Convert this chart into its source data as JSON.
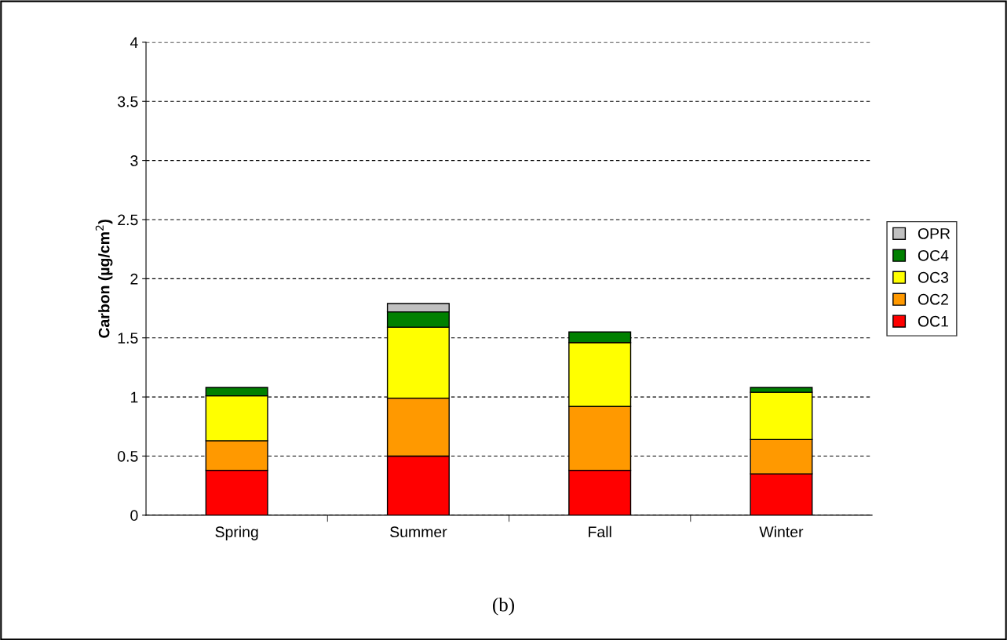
{
  "chart_data": {
    "type": "bar",
    "stacked": true,
    "ylabel": "Carbon (µg/cm$^{2}$)",
    "categories": [
      "Spring",
      "Summer",
      "Fall",
      "Winter"
    ],
    "series": [
      {
        "name": "OC1",
        "color": "#ff0000",
        "values": [
          0.38,
          0.5,
          0.38,
          0.35
        ]
      },
      {
        "name": "OC2",
        "color": "#ff9900",
        "values": [
          0.25,
          0.49,
          0.54,
          0.29
        ]
      },
      {
        "name": "OC3",
        "color": "#ffff00",
        "values": [
          0.38,
          0.6,
          0.54,
          0.4
        ]
      },
      {
        "name": "OC4",
        "color": "#008000",
        "values": [
          0.07,
          0.13,
          0.09,
          0.04
        ]
      },
      {
        "name": "OPR",
        "color": "#c0c0c0",
        "values": [
          null,
          0.07,
          null,
          null
        ]
      }
    ],
    "ylim": [
      0,
      4
    ],
    "yticks": [
      0,
      0.5,
      1,
      1.5,
      2,
      2.5,
      3,
      3.5,
      4
    ],
    "grid": "y",
    "legend": "right",
    "annotations": [
      "(b)"
    ]
  }
}
